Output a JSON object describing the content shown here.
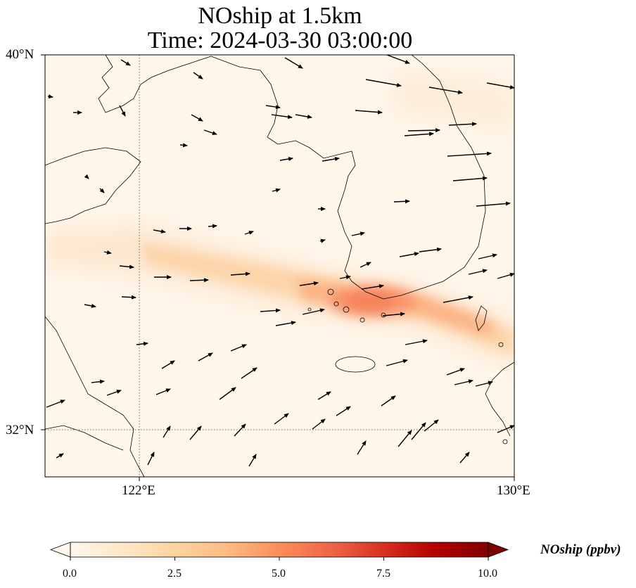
{
  "title": {
    "line1": "NOship at 1.5km",
    "line2": "Time: 2024-03-30 03:00:00"
  },
  "map": {
    "projection": "PlateCarree",
    "lon_range": [
      120,
      130
    ],
    "lat_range": [
      31,
      40
    ],
    "gridlines": {
      "style": "dotted",
      "lons": [
        122
      ],
      "lats": [
        32
      ]
    },
    "lon_ticks": [
      {
        "value": 122,
        "label": "122°E"
      },
      {
        "value": 130,
        "label": "130°E"
      }
    ],
    "lat_ticks": [
      {
        "value": 40,
        "label": "40°N"
      },
      {
        "value": 32,
        "label": "32°N"
      }
    ],
    "field": {
      "variable": "NOship",
      "units": "ppbv",
      "feature": "ship plume along the Korea Strait shipping lane",
      "max_value_approx": 5.5,
      "max_location_approx": [
        126.8,
        34.2
      ]
    },
    "wind_vectors": "shown as black arrows; mostly westerly/northwesterly in the north, southwesterly in the south"
  },
  "colorbar": {
    "cmap": "OrRd",
    "min": 0.0,
    "max": 10.0,
    "extend": "both",
    "ticks": [
      "0.0",
      "2.5",
      "5.0",
      "7.5",
      "10.0"
    ],
    "label": "NOship (ppbv)",
    "stops": [
      "#fff7ec",
      "#fee8c8",
      "#fdd49e",
      "#fdbb84",
      "#fc8d59",
      "#ef6548",
      "#d7301f",
      "#b30000",
      "#7f0000"
    ]
  }
}
